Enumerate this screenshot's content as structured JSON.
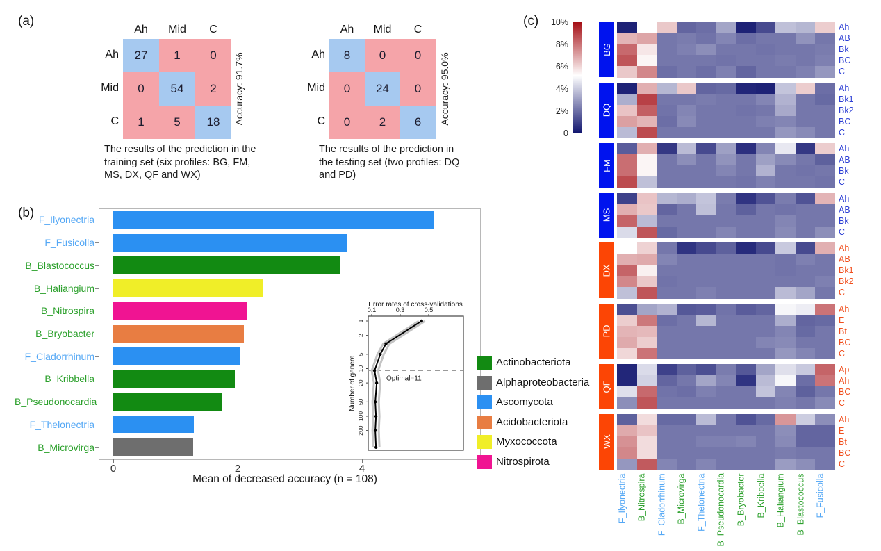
{
  "panels": {
    "a_label": "(a)",
    "b_label": "(b)",
    "c_label": "(c)"
  },
  "confusion": {
    "training": {
      "col_headers": [
        "Ah",
        "Mid",
        "C"
      ],
      "row_headers": [
        "Ah",
        "Mid",
        "C"
      ],
      "matrix": [
        [
          27,
          1,
          0
        ],
        [
          0,
          54,
          2
        ],
        [
          1,
          5,
          18
        ]
      ],
      "accuracy_label": "Accuracy: 91.7%",
      "caption": "The results of the prediction in the training set (six profiles: BG, FM, MS, DX, QF and WX)"
    },
    "testing": {
      "col_headers": [
        "Ah",
        "Mid",
        "C"
      ],
      "row_headers": [
        "Ah",
        "Mid",
        "C"
      ],
      "matrix": [
        [
          8,
          0,
          0
        ],
        [
          0,
          24,
          0
        ],
        [
          0,
          2,
          6
        ]
      ],
      "accuracy_label": "Accuracy: 95.0%",
      "caption": "The results of the prediction in the testing set (two profiles: DQ and PD)"
    }
  },
  "colors": {
    "matrix_diagonal": "#a6c9f0",
    "matrix_off_diagonal": "#f5a4a9",
    "fungi_label": "#55a8f5",
    "bacteria_label": "#2ba02b",
    "blue_group": "#0013ee",
    "orange_group": "#fc4505",
    "blue_row_label": "#2d3fd4",
    "orange_row_label": "#f04f1e",
    "heatmap_low": "#10146e",
    "heatmap_mid": "#ffffff",
    "heatmap_high": "#a50f15"
  },
  "chart_data": [
    {
      "id": "importance_bars",
      "type": "bar",
      "orientation": "horizontal",
      "title": "",
      "xlabel": "Mean of decreased accuracy (n = 108)",
      "x_ticks": [
        0,
        2,
        4
      ],
      "xlim": [
        0,
        5.6
      ],
      "categories": [
        "F_Ilyonectria",
        "F_Fusicolla",
        "B_Blastococcus",
        "B_Haliangium",
        "B_Nitrospira",
        "B_Bryobacter",
        "F_Cladorrhinum",
        "B_Kribbella",
        "B_Pseudonocardia",
        "F_Thelonectria",
        "B_Microvirga"
      ],
      "values": [
        5.15,
        3.75,
        3.65,
        2.4,
        2.15,
        2.1,
        2.05,
        1.95,
        1.75,
        1.3,
        1.28
      ],
      "bar_colors": [
        "#2b90f2",
        "#2b90f2",
        "#128a12",
        "#f0ee28",
        "#f01492",
        "#e87d42",
        "#2b90f2",
        "#128a12",
        "#128a12",
        "#2b90f2",
        "#6e6e6e"
      ],
      "category_types": [
        "fungi",
        "fungi",
        "bacteria",
        "bacteria",
        "bacteria",
        "bacteria",
        "fungi",
        "bacteria",
        "bacteria",
        "fungi",
        "bacteria"
      ],
      "legend_position": "right",
      "legend": [
        {
          "label": "Actinobacteriota",
          "color": "#128a12"
        },
        {
          "label": "Alphaproteobacteria",
          "color": "#6e6e6e"
        },
        {
          "label": "Ascomycota",
          "color": "#2b90f2"
        },
        {
          "label": "Acidobacteriota",
          "color": "#e87d42"
        },
        {
          "label": "Myxococcota",
          "color": "#f0ee28"
        },
        {
          "label": "Nitrospirota",
          "color": "#f01492"
        }
      ]
    },
    {
      "id": "cv_error_inset",
      "type": "line",
      "title": "Error rates of cross-validations",
      "ylabel": "Number of genera",
      "y_scale": "log",
      "x_ticks": [
        0.1,
        0.3,
        0.5
      ],
      "y_ticks": [
        1,
        2,
        5,
        10,
        20,
        50,
        100,
        200
      ],
      "points": [
        [
          0.45,
          1
        ],
        [
          0.2,
          3
        ],
        [
          0.16,
          5
        ],
        [
          0.12,
          11
        ],
        [
          0.135,
          20
        ],
        [
          0.125,
          50
        ],
        [
          0.13,
          100
        ],
        [
          0.125,
          200
        ],
        [
          0.13,
          450
        ]
      ],
      "annotation": "Optimal=11",
      "optimal_y": 11
    },
    {
      "id": "relative_abundance_heatmap",
      "type": "heatmap",
      "colorbar": {
        "ticks": [
          "10%",
          "8%",
          "6%",
          "4%",
          "2%",
          "0"
        ],
        "tick_values": [
          10,
          8,
          6,
          4,
          2,
          0
        ],
        "max": 10,
        "min": 0,
        "white_at": 5.2
      },
      "columns": [
        "F_Ilyonectria",
        "B_Nitrospira",
        "F_Cladorrhinum",
        "B_Microvirga",
        "F_Thelonectria",
        "B_Pseudonocardia",
        "B_Bryobacter",
        "B_Kribbella",
        "B_Haliangium",
        "B_Blastococcus",
        "F_Fusicolla"
      ],
      "column_types": [
        "fungi",
        "bacteria",
        "fungi",
        "bacteria",
        "fungi",
        "bacteria",
        "bacteria",
        "bacteria",
        "bacteria",
        "bacteria",
        "fungi"
      ],
      "groups": [
        {
          "name": "BG",
          "group_color": "blue",
          "rows": [
            {
              "label": "Ah",
              "values": [
                0.3,
                5.2,
                6.3,
                1.8,
                2.0,
                3.2,
                0.3,
                1.2,
                3.8,
                3.6,
                6.2
              ]
            },
            {
              "label": "AB",
              "values": [
                6.7,
                7.0,
                2.2,
                2.3,
                2.1,
                2.5,
                2.0,
                2.2,
                2.2,
                2.8,
                2.2
              ]
            },
            {
              "label": "Bk",
              "values": [
                8.2,
                5.7,
                2.2,
                2.4,
                2.7,
                2.2,
                2.2,
                2.1,
                2.2,
                2.2,
                2.3
              ]
            },
            {
              "label": "BC",
              "values": [
                8.6,
                5.4,
                2.2,
                2.2,
                2.2,
                2.1,
                2.2,
                2.2,
                2.3,
                2.2,
                2.4
              ]
            },
            {
              "label": "C",
              "values": [
                6.3,
                7.6,
                2.0,
                2.2,
                2.0,
                2.4,
                1.8,
                2.2,
                2.2,
                2.4,
                2.9
              ]
            }
          ]
        },
        {
          "name": "DQ",
          "group_color": "blue",
          "rows": [
            {
              "label": "Ah",
              "values": [
                0.3,
                6.8,
                3.6,
                6.3,
                1.8,
                1.9,
                0.4,
                0.3,
                3.9,
                6.2,
                2.0
              ]
            },
            {
              "label": "Bk1",
              "values": [
                3.4,
                9.0,
                2.2,
                2.2,
                2.3,
                2.2,
                2.2,
                2.5,
                3.5,
                2.2,
                1.9
              ]
            },
            {
              "label": "Bk2",
              "values": [
                6.4,
                8.4,
                2.1,
                2.5,
                2.2,
                2.2,
                2.1,
                2.2,
                3.3,
                2.2,
                2.2
              ]
            },
            {
              "label": "BC",
              "values": [
                7.1,
                6.7,
                2.0,
                2.6,
                2.2,
                2.2,
                2.2,
                2.4,
                2.5,
                2.2,
                2.2
              ]
            },
            {
              "label": "C",
              "values": [
                3.7,
                8.8,
                2.2,
                2.2,
                2.2,
                2.2,
                2.2,
                2.2,
                2.9,
                2.6,
                2.2
              ]
            }
          ]
        },
        {
          "name": "FM",
          "group_color": "blue",
          "rows": [
            {
              "label": "Ah",
              "values": [
                1.6,
                6.8,
                0.8,
                3.7,
                1.2,
                3.1,
                0.6,
                2.5,
                4.7,
                0.8,
                6.2
              ]
            },
            {
              "label": "AB",
              "values": [
                8.1,
                5.4,
                2.2,
                2.7,
                2.2,
                2.8,
                2.2,
                3.1,
                2.6,
                2.2,
                1.7
              ]
            },
            {
              "label": "Bk",
              "values": [
                8.1,
                5.4,
                2.2,
                2.2,
                2.2,
                2.5,
                2.2,
                3.5,
                2.2,
                2.1,
                2.2
              ]
            },
            {
              "label": "C",
              "values": [
                8.8,
                3.8,
                2.2,
                2.2,
                2.2,
                2.2,
                2.1,
                2.4,
                2.2,
                2.2,
                2.1
              ]
            }
          ]
        },
        {
          "name": "MS",
          "group_color": "blue",
          "rows": [
            {
              "label": "Ah",
              "values": [
                1.0,
                6.4,
                3.6,
                3.4,
                3.9,
                2.3,
                0.7,
                1.4,
                2.3,
                1.4,
                6.7
              ]
            },
            {
              "label": "AB",
              "values": [
                6.8,
                6.3,
                1.8,
                2.2,
                3.8,
                2.2,
                1.7,
                2.2,
                2.1,
                2.2,
                2.2
              ]
            },
            {
              "label": "Bk",
              "values": [
                8.3,
                3.7,
                2.2,
                2.2,
                2.2,
                2.2,
                2.2,
                2.2,
                2.5,
                2.2,
                2.2
              ]
            },
            {
              "label": "C",
              "values": [
                4.4,
                8.6,
                1.9,
                2.2,
                2.2,
                2.5,
                2.2,
                2.2,
                2.6,
                2.2,
                2.7
              ]
            }
          ]
        },
        {
          "name": "DX",
          "group_color": "orange",
          "rows": [
            {
              "label": "Ah",
              "values": [
                5.2,
                6.1,
                2.2,
                0.7,
                1.2,
                1.7,
                0.5,
                1.2,
                4.0,
                1.2,
                6.8
              ]
            },
            {
              "label": "AB",
              "values": [
                6.8,
                6.9,
                2.5,
                2.2,
                2.2,
                2.2,
                2.2,
                2.2,
                2.1,
                2.4,
                2.2
              ]
            },
            {
              "label": "Bk1",
              "values": [
                8.3,
                5.5,
                2.2,
                2.2,
                2.2,
                2.2,
                2.2,
                2.2,
                2.1,
                2.2,
                2.2
              ]
            },
            {
              "label": "Bk2",
              "values": [
                7.6,
                6.3,
                2.1,
                2.2,
                2.2,
                2.2,
                2.2,
                2.2,
                2.2,
                2.2,
                2.4
              ]
            },
            {
              "label": "C",
              "values": [
                3.8,
                8.6,
                2.2,
                2.2,
                2.4,
                2.2,
                2.2,
                2.2,
                3.7,
                3.2,
                2.2
              ]
            }
          ]
        },
        {
          "name": "PD",
          "group_color": "orange",
          "rows": [
            {
              "label": "Ah",
              "values": [
                1.3,
                3.2,
                3.5,
                1.5,
                1.6,
                2.1,
                1.6,
                1.8,
                5.0,
                4.8,
                8.0
              ]
            },
            {
              "label": "E",
              "values": [
                6.2,
                7.9,
                2.0,
                2.2,
                3.6,
                2.2,
                2.2,
                2.2,
                3.4,
                1.8,
                1.9
              ]
            },
            {
              "label": "Bt",
              "values": [
                6.7,
                6.6,
                2.2,
                2.2,
                2.2,
                2.2,
                2.2,
                2.2,
                2.5,
                1.9,
                2.2
              ]
            },
            {
              "label": "BC",
              "values": [
                6.9,
                6.2,
                2.2,
                2.2,
                2.2,
                2.2,
                2.2,
                2.5,
                2.6,
                2.2,
                2.2
              ]
            },
            {
              "label": "C",
              "values": [
                6.0,
                8.0,
                2.2,
                2.2,
                2.2,
                2.2,
                2.2,
                2.2,
                2.9,
                2.5,
                2.2
              ]
            }
          ]
        },
        {
          "name": "QF",
          "group_color": "orange",
          "rows": [
            {
              "label": "Ap",
              "values": [
                0.4,
                4.4,
                1.0,
                1.7,
                1.3,
                2.3,
                1.5,
                3.2,
                4.5,
                4.0,
                8.3
              ]
            },
            {
              "label": "Ah",
              "values": [
                0.4,
                4.2,
                1.8,
                2.2,
                3.2,
                2.5,
                0.7,
                3.7,
                5.0,
                2.0,
                8.0
              ]
            },
            {
              "label": "BC",
              "values": [
                4.5,
                8.2,
                2.1,
                2.0,
                2.4,
                2.2,
                2.2,
                3.9,
                2.5,
                1.7,
                2.2
              ]
            },
            {
              "label": "C",
              "values": [
                2.7,
                8.6,
                2.2,
                2.2,
                2.2,
                2.2,
                2.2,
                2.2,
                2.4,
                2.2,
                2.6
              ]
            }
          ]
        },
        {
          "name": "WX",
          "group_color": "orange",
          "rows": [
            {
              "label": "Ah",
              "values": [
                1.7,
                5.9,
                1.9,
                1.9,
                3.7,
                2.2,
                1.4,
                1.9,
                7.3,
                4.1,
                2.7
              ]
            },
            {
              "label": "E",
              "values": [
                6.9,
                6.4,
                2.2,
                2.2,
                2.2,
                2.2,
                2.2,
                2.2,
                2.7,
                1.8,
                1.8
              ]
            },
            {
              "label": "Bt",
              "values": [
                7.4,
                5.9,
                2.2,
                2.2,
                2.4,
                2.4,
                2.5,
                2.2,
                2.6,
                1.8,
                1.8
              ]
            },
            {
              "label": "BC",
              "values": [
                7.6,
                5.9,
                2.2,
                2.2,
                2.2,
                2.2,
                2.2,
                2.2,
                2.3,
                2.2,
                2.2
              ]
            },
            {
              "label": "C",
              "values": [
                2.9,
                8.5,
                2.5,
                2.2,
                2.5,
                2.2,
                2.2,
                2.2,
                3.0,
                2.7,
                2.2
              ]
            }
          ]
        }
      ]
    }
  ]
}
